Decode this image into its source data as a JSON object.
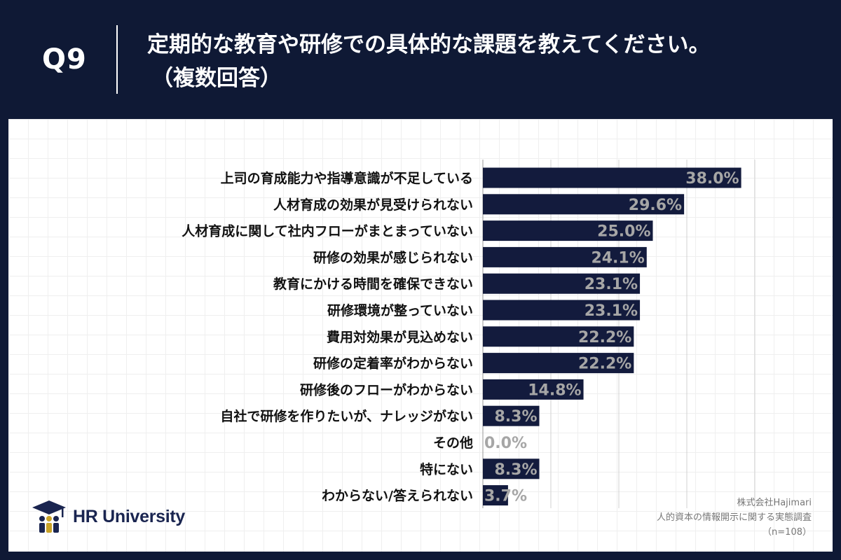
{
  "header": {
    "question_number": "Q9",
    "title_line1": "定期的な教育や研修での具体的な課題を教えてください。",
    "title_line2": "（複数回答）"
  },
  "colors": {
    "background": "#0f1935",
    "bar": "#131b3d",
    "value_label": "#a6a6a6",
    "gridline": "#d0d0d0"
  },
  "chart_data": {
    "type": "bar",
    "orientation": "horizontal",
    "categories": [
      "上司の育成能力や指導意識が不足している",
      "人材育成の効果が見受けられない",
      "人材育成に関して社内フローがまとまっていない",
      "研修の効果が感じられない",
      "教育にかける時間を確保できない",
      "研修環境が整っていない",
      "費用対効果が見込めない",
      "研修の定着率がわからない",
      "研修後のフローがわからない",
      "自社で研修を作りたいが、ナレッジがない",
      "その他",
      "特にない",
      "わからない/答えられない"
    ],
    "values": [
      38.0,
      29.6,
      25.0,
      24.1,
      23.1,
      23.1,
      22.2,
      22.2,
      14.8,
      8.3,
      0.0,
      8.3,
      3.7
    ],
    "value_labels": [
      "38.0%",
      "29.6%",
      "25.0%",
      "24.1%",
      "23.1%",
      "23.1%",
      "22.2%",
      "22.2%",
      "14.8%",
      "8.3%",
      "0.0%",
      "8.3%",
      "3.7%"
    ],
    "xlim": [
      0,
      40
    ],
    "gridlines_at": [
      0,
      10,
      20,
      30,
      40
    ],
    "unit": "%"
  },
  "logo": {
    "text": "HR University",
    "icon": "graduation-cap-people-icon"
  },
  "source": {
    "company": "株式会社Hajimari",
    "survey": "人的資本の情報開示に関する実態調査",
    "sample": "（n=108）"
  }
}
